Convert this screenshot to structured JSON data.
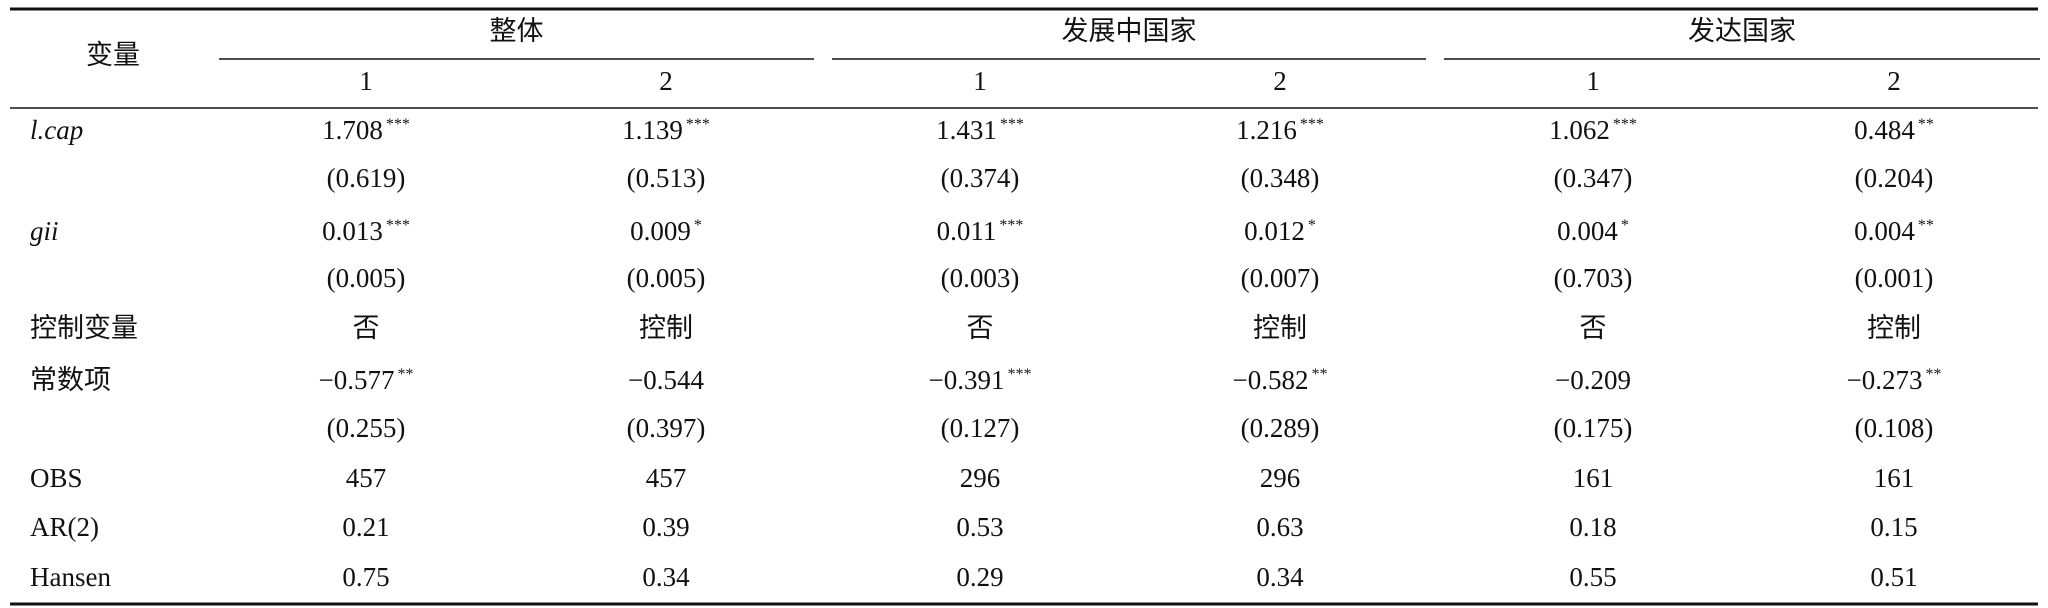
{
  "header": {
    "row_label": "变量",
    "groups": [
      {
        "name": "整体",
        "columns": [
          "1",
          "2"
        ]
      },
      {
        "name": "发展中国家",
        "columns": [
          "1",
          "2"
        ]
      },
      {
        "name": "发达国家",
        "columns": [
          "1",
          "2"
        ]
      }
    ]
  },
  "rows": [
    {
      "label": "l.cap",
      "italic": true,
      "cells": [
        {
          "value": "1.708",
          "stars": "***"
        },
        {
          "value": "1.139",
          "stars": "***"
        },
        {
          "value": "1.431",
          "stars": "***"
        },
        {
          "value": "1.216",
          "stars": "***"
        },
        {
          "value": "1.062",
          "stars": "***"
        },
        {
          "value": "0.484",
          "stars": "**"
        }
      ]
    },
    {
      "cells": [
        "(0.619)",
        "(0.513)",
        "(0.374)",
        "(0.348)",
        "(0.347)",
        "(0.204)"
      ]
    },
    {
      "label": "gii",
      "italic": true,
      "cells": [
        {
          "value": "0.013",
          "stars": "***"
        },
        {
          "value": "0.009",
          "stars": "*"
        },
        {
          "value": "0.011",
          "stars": "***"
        },
        {
          "value": "0.012",
          "stars": "*"
        },
        {
          "value": "0.004",
          "stars": "*"
        },
        {
          "value": "0.004",
          "stars": "**"
        }
      ]
    },
    {
      "cells": [
        "(0.005)",
        "(0.005)",
        "(0.003)",
        "(0.007)",
        "(0.703)",
        "(0.001)"
      ]
    },
    {
      "label": "控制变量",
      "cells": [
        "否",
        "控制",
        "否",
        "控制",
        "否",
        "控制"
      ]
    },
    {
      "label": "常数项",
      "cells": [
        {
          "value": "−0.577",
          "stars": "**"
        },
        "−0.544",
        {
          "value": "−0.391",
          "stars": "***"
        },
        {
          "value": "−0.582",
          "stars": "**"
        },
        "−0.209",
        {
          "value": "−0.273",
          "stars": "**"
        }
      ]
    },
    {
      "cells": [
        "(0.255)",
        "(0.397)",
        "(0.127)",
        "(0.289)",
        "(0.175)",
        "(0.108)"
      ]
    },
    {
      "label": "OBS",
      "cells": [
        "457",
        "457",
        "296",
        "296",
        "161",
        "161"
      ]
    },
    {
      "label": "AR(2)",
      "cells": [
        "0.21",
        "0.39",
        "0.53",
        "0.63",
        "0.18",
        "0.15"
      ]
    },
    {
      "label": "Hansen",
      "cells": [
        "0.75",
        "0.34",
        "0.29",
        "0.34",
        "0.55",
        "0.51"
      ]
    }
  ]
}
